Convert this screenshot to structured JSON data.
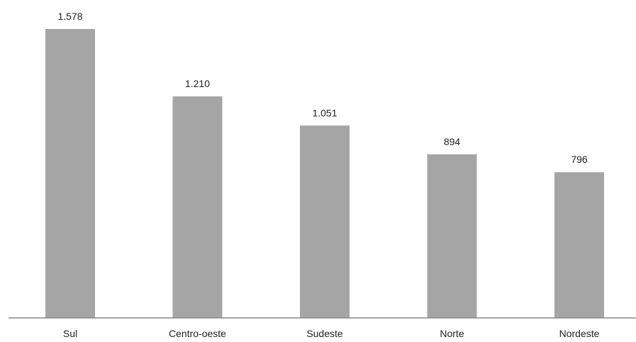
{
  "chart_data": {
    "type": "bar",
    "categories": [
      "Sul",
      "Centro-oeste",
      "Sudeste",
      "Norte",
      "Nordeste"
    ],
    "values": [
      1578,
      1210,
      1051,
      894,
      796
    ],
    "value_labels": [
      "1.578",
      "1.210",
      "1.051",
      "894",
      "796"
    ],
    "title": "",
    "xlabel": "",
    "ylabel": "",
    "ylim": [
      0,
      1578
    ],
    "grid": false,
    "legend": "none",
    "bar_color": "#a5a5a5"
  }
}
